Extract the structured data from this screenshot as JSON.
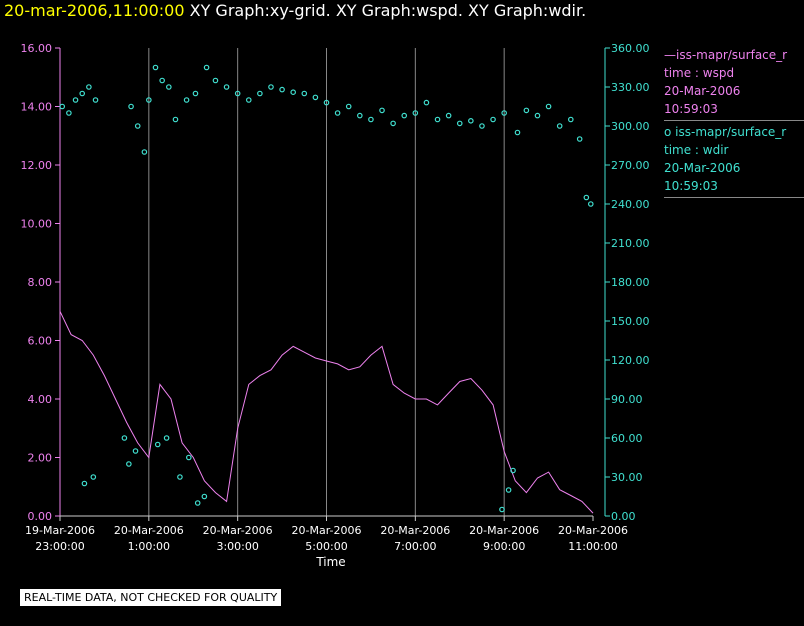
{
  "header": {
    "timestamp": "20-mar-2006,11:00:00",
    "graphs": " XY Graph:xy-grid.  XY Graph:wspd.  XY Graph:wdir."
  },
  "legend": {
    "wspd": {
      "line1": "—iss-mapr/surface_r",
      "line2": "time : wspd",
      "line3": "20-Mar-2006",
      "line4": "10:59:03"
    },
    "wdir": {
      "line1": "o iss-mapr/surface_r",
      "line2": "time : wdir",
      "line3": "20-Mar-2006",
      "line4": "10:59:03"
    }
  },
  "notice": "REAL-TIME DATA, NOT CHECKED FOR QUALITY",
  "colors": {
    "wspd": "#ee82ee",
    "wdir": "#40e0d0",
    "grid": "#888888",
    "axis_left": "#ee82ee",
    "axis_right": "#40e0d0"
  },
  "chart_data": {
    "type": "line",
    "xlabel": "Time",
    "x_ticks": [
      {
        "date": "19-Mar-2006",
        "time": "23:00:00"
      },
      {
        "date": "20-Mar-2006",
        "time": "1:00:00"
      },
      {
        "date": "20-Mar-2006",
        "time": "3:00:00"
      },
      {
        "date": "20-Mar-2006",
        "time": "5:00:00"
      },
      {
        "date": "20-Mar-2006",
        "time": "7:00:00"
      },
      {
        "date": "20-Mar-2006",
        "time": "9:00:00"
      },
      {
        "date": "20-Mar-2006",
        "time": "11:00:00"
      }
    ],
    "xlim_hours": [
      23,
      35
    ],
    "y_left": {
      "ylim": [
        0,
        16
      ],
      "ticks": [
        "0.00",
        "2.00",
        "4.00",
        "6.00",
        "8.00",
        "10.00",
        "12.00",
        "14.00",
        "16.00"
      ]
    },
    "y_right": {
      "ylim": [
        0,
        360
      ],
      "ticks": [
        "0.00",
        "30.00",
        "60.00",
        "90.00",
        "120.00",
        "150.00",
        "180.00",
        "210.00",
        "240.00",
        "270.00",
        "300.00",
        "330.00",
        "360.00"
      ]
    },
    "grid": true,
    "series": [
      {
        "name": "iss-mapr/surface_r time : wspd",
        "style": "line",
        "axis": "left",
        "x_hours": [
          23.0,
          23.25,
          23.5,
          23.75,
          24.0,
          24.25,
          24.5,
          24.75,
          25.0,
          25.25,
          25.5,
          25.75,
          26.0,
          26.25,
          26.5,
          26.75,
          27.0,
          27.25,
          27.5,
          27.75,
          28.0,
          28.25,
          28.5,
          28.75,
          29.0,
          29.25,
          29.5,
          29.75,
          30.0,
          30.25,
          30.5,
          30.75,
          31.0,
          31.25,
          31.5,
          31.75,
          32.0,
          32.25,
          32.5,
          32.75,
          33.0,
          33.25,
          33.5,
          33.75,
          34.0,
          34.25,
          34.5,
          34.75,
          35.0
        ],
        "values": [
          7.0,
          6.2,
          6.0,
          5.5,
          4.8,
          4.0,
          3.2,
          2.5,
          2.0,
          4.5,
          4.0,
          2.5,
          2.0,
          1.2,
          0.8,
          0.5,
          3.0,
          4.5,
          4.8,
          5.0,
          5.5,
          5.8,
          5.6,
          5.4,
          5.3,
          5.2,
          5.0,
          5.1,
          5.5,
          5.8,
          4.5,
          4.2,
          4.0,
          4.0,
          3.8,
          4.2,
          4.6,
          4.7,
          4.3,
          3.8,
          2.2,
          1.2,
          0.8,
          1.3,
          1.5,
          0.9,
          0.7,
          0.5,
          0.1
        ]
      },
      {
        "name": "iss-mapr/surface_r time : wdir",
        "style": "scatter",
        "axis": "right",
        "x_hours": [
          23.05,
          23.2,
          23.35,
          23.5,
          23.65,
          23.8,
          24.6,
          24.75,
          24.9,
          25.0,
          25.15,
          25.3,
          25.45,
          25.6,
          25.85,
          26.05,
          26.3,
          26.5,
          26.75,
          27.0,
          27.25,
          27.5,
          27.75,
          28.0,
          28.25,
          28.5,
          28.75,
          29.0,
          29.25,
          29.5,
          29.75,
          30.0,
          30.25,
          30.5,
          30.75,
          31.0,
          31.25,
          31.5,
          31.75,
          32.0,
          32.25,
          32.5,
          32.75,
          33.0,
          33.3,
          33.5,
          33.75,
          34.0,
          34.25,
          34.5,
          34.7,
          34.85,
          34.95,
          23.55,
          23.75,
          24.45,
          24.55,
          24.7,
          25.2,
          25.4,
          25.7,
          25.9,
          26.1,
          26.25,
          32.95,
          33.1,
          33.2
        ],
        "values": [
          315,
          310,
          320,
          325,
          330,
          320,
          315,
          300,
          280,
          320,
          345,
          335,
          330,
          305,
          320,
          325,
          345,
          335,
          330,
          325,
          320,
          325,
          330,
          328,
          326,
          325,
          322,
          318,
          310,
          315,
          308,
          305,
          312,
          302,
          308,
          310,
          318,
          305,
          308,
          302,
          304,
          300,
          305,
          310,
          295,
          312,
          308,
          315,
          300,
          305,
          290,
          245,
          240,
          25,
          30,
          60,
          40,
          50,
          55,
          60,
          30,
          45,
          10,
          15,
          5,
          20,
          35
        ]
      }
    ]
  }
}
